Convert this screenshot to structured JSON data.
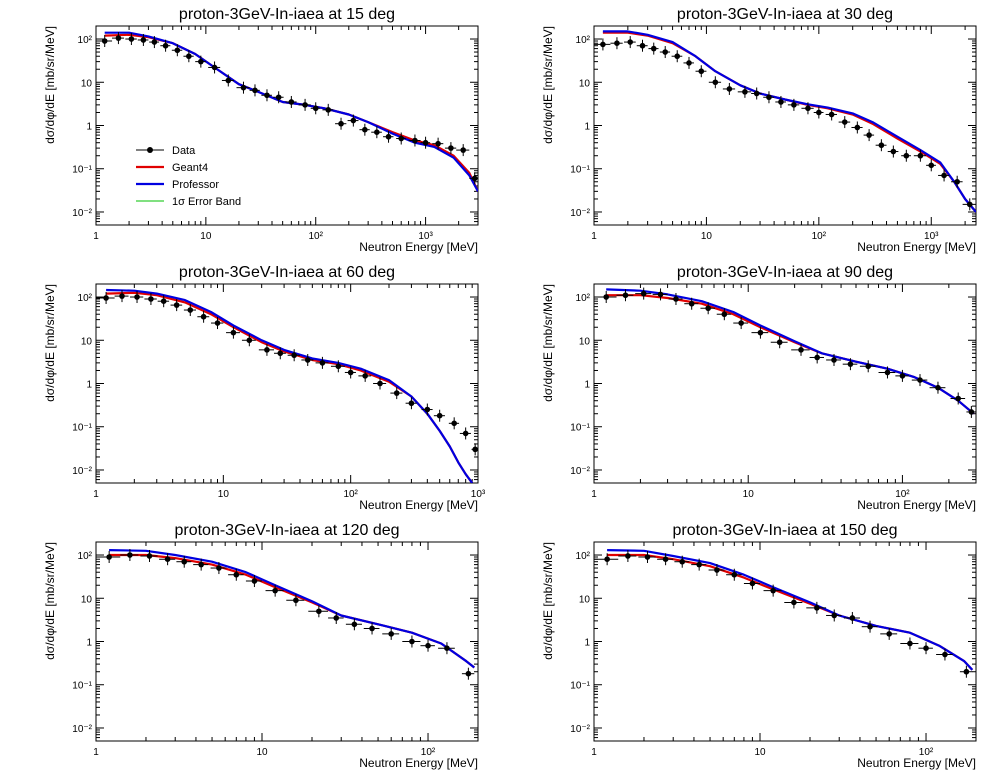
{
  "figure": {
    "legend": [
      {
        "label": "Data",
        "color": "#000000",
        "style": "points"
      },
      {
        "label": "Geant4",
        "color": "#e00000",
        "style": "line"
      },
      {
        "label": "Professor",
        "color": "#0000e0",
        "style": "line"
      },
      {
        "label": "1σ Error Band",
        "color": "#00c000",
        "style": "band"
      }
    ]
  },
  "chart_data": [
    {
      "type": "line",
      "title": "proton-3GeV-In-iaea at 15 deg",
      "xlabel": "Neutron Energy [MeV]",
      "ylabel": "dσ/dφ/dE [mb/sr/MeV]",
      "xscale": "log",
      "yscale": "log",
      "xlim": [
        1,
        3000
      ],
      "ylim": [
        0.005,
        200
      ],
      "legend_position": "middle-left",
      "data_points": {
        "x": [
          1.2,
          1.6,
          2.1,
          2.7,
          3.4,
          4.3,
          5.5,
          7,
          9,
          12,
          16,
          22,
          28,
          36,
          46,
          60,
          80,
          100,
          130,
          170,
          220,
          280,
          360,
          460,
          600,
          800,
          1000,
          1300,
          1700,
          2200,
          2800
        ],
        "y": [
          90,
          105,
          100,
          95,
          85,
          70,
          55,
          40,
          30,
          22,
          11,
          7.5,
          6.5,
          5,
          4.5,
          3.5,
          3,
          2.5,
          2.3,
          1.1,
          1.3,
          0.8,
          0.7,
          0.55,
          0.5,
          0.45,
          0.4,
          0.38,
          0.3,
          0.27,
          0.06
        ],
        "xerr": [
          0.2,
          0.2,
          0.25,
          0.3,
          0.35,
          0.45,
          0.6,
          0.75,
          1,
          1.5,
          2,
          3,
          3,
          4,
          5,
          7,
          10,
          10,
          15,
          20,
          25,
          30,
          40,
          50,
          60,
          100,
          100,
          150,
          200,
          300,
          300
        ]
      },
      "series": [
        {
          "name": "Geant4",
          "color": "#e00000",
          "x": [
            1.2,
            2,
            3,
            5,
            8,
            12,
            20,
            30,
            50,
            80,
            120,
            200,
            300,
            500,
            800,
            1200,
            1800,
            2500,
            3000
          ],
          "y": [
            120,
            125,
            110,
            80,
            45,
            22,
            9,
            6,
            3.5,
            3,
            2.5,
            1.8,
            1.2,
            0.7,
            0.45,
            0.35,
            0.2,
            0.08,
            0.03
          ]
        },
        {
          "name": "Professor",
          "color": "#0000e0",
          "x": [
            1.2,
            2,
            3,
            5,
            8,
            12,
            20,
            30,
            50,
            80,
            120,
            200,
            300,
            500,
            800,
            1200,
            1800,
            2500,
            3000
          ],
          "y": [
            140,
            140,
            115,
            80,
            45,
            22,
            9,
            6,
            3.5,
            3,
            2.5,
            1.8,
            1.2,
            0.65,
            0.4,
            0.32,
            0.18,
            0.07,
            0.03
          ]
        }
      ]
    },
    {
      "type": "line",
      "title": "proton-3GeV-In-iaea at 30 deg",
      "xlabel": "Neutron Energy [MeV]",
      "ylabel": "dσ/dφ/dE [mb/sr/MeV]",
      "xscale": "log",
      "yscale": "log",
      "xlim": [
        1,
        2500
      ],
      "ylim": [
        0.005,
        200
      ],
      "data_points": {
        "x": [
          1.2,
          1.6,
          2.1,
          2.7,
          3.4,
          4.3,
          5.5,
          7,
          9,
          12,
          16,
          22,
          28,
          36,
          46,
          60,
          80,
          100,
          130,
          170,
          220,
          280,
          360,
          460,
          600,
          800,
          1000,
          1300,
          1700,
          2200
        ],
        "y": [
          75,
          80,
          85,
          70,
          60,
          50,
          40,
          28,
          18,
          10,
          7,
          6,
          5.5,
          4.5,
          3.5,
          3,
          2.5,
          2,
          1.8,
          1.2,
          0.9,
          0.6,
          0.35,
          0.25,
          0.2,
          0.2,
          0.12,
          0.07,
          0.05,
          0.015
        ],
        "xerr": [
          0.2,
          0.2,
          0.25,
          0.3,
          0.35,
          0.45,
          0.6,
          0.75,
          1,
          1.5,
          2,
          3,
          3,
          4,
          5,
          7,
          10,
          10,
          15,
          20,
          25,
          30,
          40,
          50,
          60,
          100,
          100,
          150,
          200,
          300
        ]
      },
      "series": [
        {
          "name": "Geant4",
          "color": "#e00000",
          "x": [
            1.2,
            2,
            3,
            5,
            8,
            12,
            20,
            30,
            50,
            80,
            120,
            200,
            300,
            500,
            800,
            1200,
            1600,
            2000,
            2500
          ],
          "y": [
            140,
            140,
            120,
            80,
            40,
            18,
            8.5,
            5.5,
            4,
            3,
            2.5,
            1.8,
            1.1,
            0.5,
            0.25,
            0.13,
            0.05,
            0.02,
            0.01
          ]
        },
        {
          "name": "Professor",
          "color": "#0000e0",
          "x": [
            1.2,
            2,
            3,
            5,
            8,
            12,
            20,
            30,
            50,
            80,
            120,
            200,
            300,
            500,
            800,
            1200,
            1600,
            2000,
            2500
          ],
          "y": [
            150,
            150,
            125,
            85,
            40,
            18,
            8.5,
            5.5,
            4,
            3.1,
            2.6,
            1.9,
            1.2,
            0.55,
            0.27,
            0.14,
            0.05,
            0.02,
            0.01
          ]
        }
      ]
    },
    {
      "type": "line",
      "title": "proton-3GeV-In-iaea at 60 deg",
      "xlabel": "Neutron Energy [MeV]",
      "ylabel": "dσ/dφ/dE [mb/sr/MeV]",
      "xscale": "log",
      "yscale": "log",
      "xlim": [
        1,
        1000
      ],
      "ylim": [
        0.005,
        200
      ],
      "data_points": {
        "x": [
          1.2,
          1.6,
          2.1,
          2.7,
          3.4,
          4.3,
          5.5,
          7,
          9,
          12,
          16,
          22,
          28,
          36,
          46,
          60,
          80,
          100,
          130,
          170,
          230,
          300,
          400,
          500,
          650,
          800,
          950
        ],
        "y": [
          95,
          105,
          100,
          90,
          80,
          65,
          50,
          35,
          25,
          15,
          10,
          6,
          5,
          4.5,
          3.5,
          3,
          2.5,
          1.8,
          1.5,
          1,
          0.6,
          0.35,
          0.25,
          0.18,
          0.12,
          0.07,
          0.03
        ],
        "xerr": [
          0.2,
          0.2,
          0.25,
          0.3,
          0.35,
          0.45,
          0.6,
          0.75,
          1,
          1.5,
          2,
          3,
          3,
          4,
          5,
          7,
          10,
          10,
          15,
          20,
          25,
          30,
          40,
          50,
          60,
          80,
          60
        ]
      },
      "series": [
        {
          "name": "Geant4",
          "color": "#e00000",
          "x": [
            1.2,
            2,
            3,
            5,
            8,
            12,
            20,
            30,
            50,
            80,
            120,
            200,
            300,
            400,
            500,
            600,
            700,
            800,
            900
          ],
          "y": [
            120,
            125,
            110,
            75,
            40,
            20,
            9,
            5.5,
            3.5,
            2.8,
            2,
            1.1,
            0.5,
            0.2,
            0.08,
            0.035,
            0.015,
            0.008,
            0.005
          ]
        },
        {
          "name": "Professor",
          "color": "#0000e0",
          "x": [
            1.2,
            2,
            3,
            5,
            8,
            12,
            20,
            30,
            50,
            80,
            120,
            200,
            300,
            400,
            500,
            600,
            700,
            800,
            900
          ],
          "y": [
            145,
            140,
            120,
            85,
            45,
            22,
            10,
            6,
            3.8,
            3,
            2.2,
            1.2,
            0.5,
            0.2,
            0.08,
            0.035,
            0.015,
            0.008,
            0.005
          ]
        }
      ]
    },
    {
      "type": "line",
      "title": "proton-3GeV-In-iaea at 90 deg",
      "xlabel": "Neutron Energy [MeV]",
      "ylabel": "dσ/dφ/dE [mb/sr/MeV]",
      "xscale": "log",
      "yscale": "log",
      "xlim": [
        1,
        300
      ],
      "ylim": [
        0.005,
        200
      ],
      "data_points": {
        "x": [
          1.2,
          1.6,
          2.1,
          2.7,
          3.4,
          4.3,
          5.5,
          7,
          9,
          12,
          16,
          22,
          28,
          36,
          46,
          60,
          80,
          100,
          130,
          170,
          230,
          280
        ],
        "y": [
          100,
          110,
          120,
          115,
          90,
          70,
          55,
          40,
          25,
          15,
          9,
          6,
          4,
          3.5,
          2.8,
          2.5,
          1.8,
          1.5,
          1.2,
          0.8,
          0.45,
          0.22
        ],
        "xerr": [
          0.2,
          0.2,
          0.25,
          0.3,
          0.35,
          0.45,
          0.6,
          0.75,
          1,
          1.5,
          2,
          3,
          3,
          4,
          5,
          7,
          10,
          10,
          15,
          20,
          25,
          20
        ]
      },
      "series": [
        {
          "name": "Geant4",
          "color": "#e00000",
          "x": [
            1.2,
            2,
            3,
            5,
            8,
            12,
            20,
            30,
            50,
            80,
            120,
            170,
            230,
            290
          ],
          "y": [
            110,
            110,
            95,
            70,
            40,
            20,
            9,
            5,
            3.2,
            2.2,
            1.4,
            0.8,
            0.4,
            0.2
          ]
        },
        {
          "name": "Professor",
          "color": "#0000e0",
          "x": [
            1.2,
            2,
            3,
            5,
            8,
            12,
            20,
            30,
            50,
            80,
            120,
            170,
            230,
            290
          ],
          "y": [
            150,
            140,
            115,
            80,
            45,
            22,
            9.5,
            5,
            3.2,
            2.2,
            1.4,
            0.8,
            0.4,
            0.2
          ]
        }
      ]
    },
    {
      "type": "line",
      "title": "proton-3GeV-In-iaea at 120 deg",
      "xlabel": "Neutron Energy [MeV]",
      "ylabel": "dσ/dφ/dE [mb/sr/MeV]",
      "xscale": "log",
      "yscale": "log",
      "xlim": [
        1,
        200
      ],
      "ylim": [
        0.005,
        200
      ],
      "data_points": {
        "x": [
          1.2,
          1.6,
          2.1,
          2.7,
          3.4,
          4.3,
          5.5,
          7,
          9,
          12,
          16,
          22,
          28,
          36,
          46,
          60,
          80,
          100,
          130,
          175
        ],
        "y": [
          90,
          100,
          95,
          80,
          70,
          60,
          50,
          35,
          25,
          15,
          9,
          5,
          3.5,
          2.5,
          2,
          1.5,
          1,
          0.8,
          0.7,
          0.18
        ],
        "xerr": [
          0.2,
          0.2,
          0.25,
          0.3,
          0.35,
          0.45,
          0.6,
          0.75,
          1,
          1.5,
          2,
          3,
          3,
          4,
          5,
          7,
          10,
          10,
          15,
          15
        ]
      },
      "series": [
        {
          "name": "Geant4",
          "color": "#e00000",
          "x": [
            1.2,
            2,
            3,
            5,
            8,
            12,
            20,
            30,
            50,
            80,
            120,
            170,
            190
          ],
          "y": [
            100,
            100,
            85,
            60,
            35,
            18,
            8,
            4,
            2.5,
            1.6,
            0.9,
            0.35,
            0.25
          ]
        },
        {
          "name": "Professor",
          "color": "#0000e0",
          "x": [
            1.2,
            2,
            3,
            5,
            8,
            12,
            20,
            30,
            50,
            80,
            120,
            170,
            190
          ],
          "y": [
            130,
            125,
            100,
            70,
            40,
            20,
            8.5,
            4,
            2.5,
            1.6,
            0.9,
            0.35,
            0.25
          ]
        }
      ]
    },
    {
      "type": "line",
      "title": "proton-3GeV-In-iaea at 150 deg",
      "xlabel": "Neutron Energy [MeV]",
      "ylabel": "dσ/dφ/dE [mb/sr/MeV]",
      "xscale": "log",
      "yscale": "log",
      "xlim": [
        1,
        200
      ],
      "ylim": [
        0.005,
        200
      ],
      "data_points": {
        "x": [
          1.2,
          1.6,
          2.1,
          2.7,
          3.4,
          4.3,
          5.5,
          7,
          9,
          12,
          16,
          22,
          28,
          36,
          46,
          60,
          80,
          100,
          130,
          175
        ],
        "y": [
          80,
          95,
          90,
          80,
          70,
          60,
          45,
          35,
          22,
          15,
          8,
          6,
          4,
          3.5,
          2.2,
          1.5,
          0.9,
          0.7,
          0.5,
          0.2
        ],
        "xerr": [
          0.2,
          0.2,
          0.25,
          0.3,
          0.35,
          0.45,
          0.6,
          0.75,
          1,
          1.5,
          2,
          3,
          3,
          4,
          5,
          7,
          10,
          10,
          15,
          15
        ]
      },
      "series": [
        {
          "name": "Geant4",
          "color": "#e00000",
          "x": [
            1.2,
            2,
            3,
            5,
            8,
            12,
            20,
            30,
            50,
            80,
            120,
            170,
            190
          ],
          "y": [
            100,
            100,
            80,
            55,
            30,
            16,
            7.5,
            4,
            2.3,
            1.6,
            0.8,
            0.35,
            0.22
          ]
        },
        {
          "name": "Professor",
          "color": "#0000e0",
          "x": [
            1.2,
            2,
            3,
            5,
            8,
            12,
            20,
            30,
            50,
            80,
            120,
            170,
            190
          ],
          "y": [
            130,
            125,
            95,
            65,
            35,
            18,
            8,
            4,
            2.3,
            1.6,
            0.8,
            0.35,
            0.22
          ]
        }
      ]
    }
  ]
}
